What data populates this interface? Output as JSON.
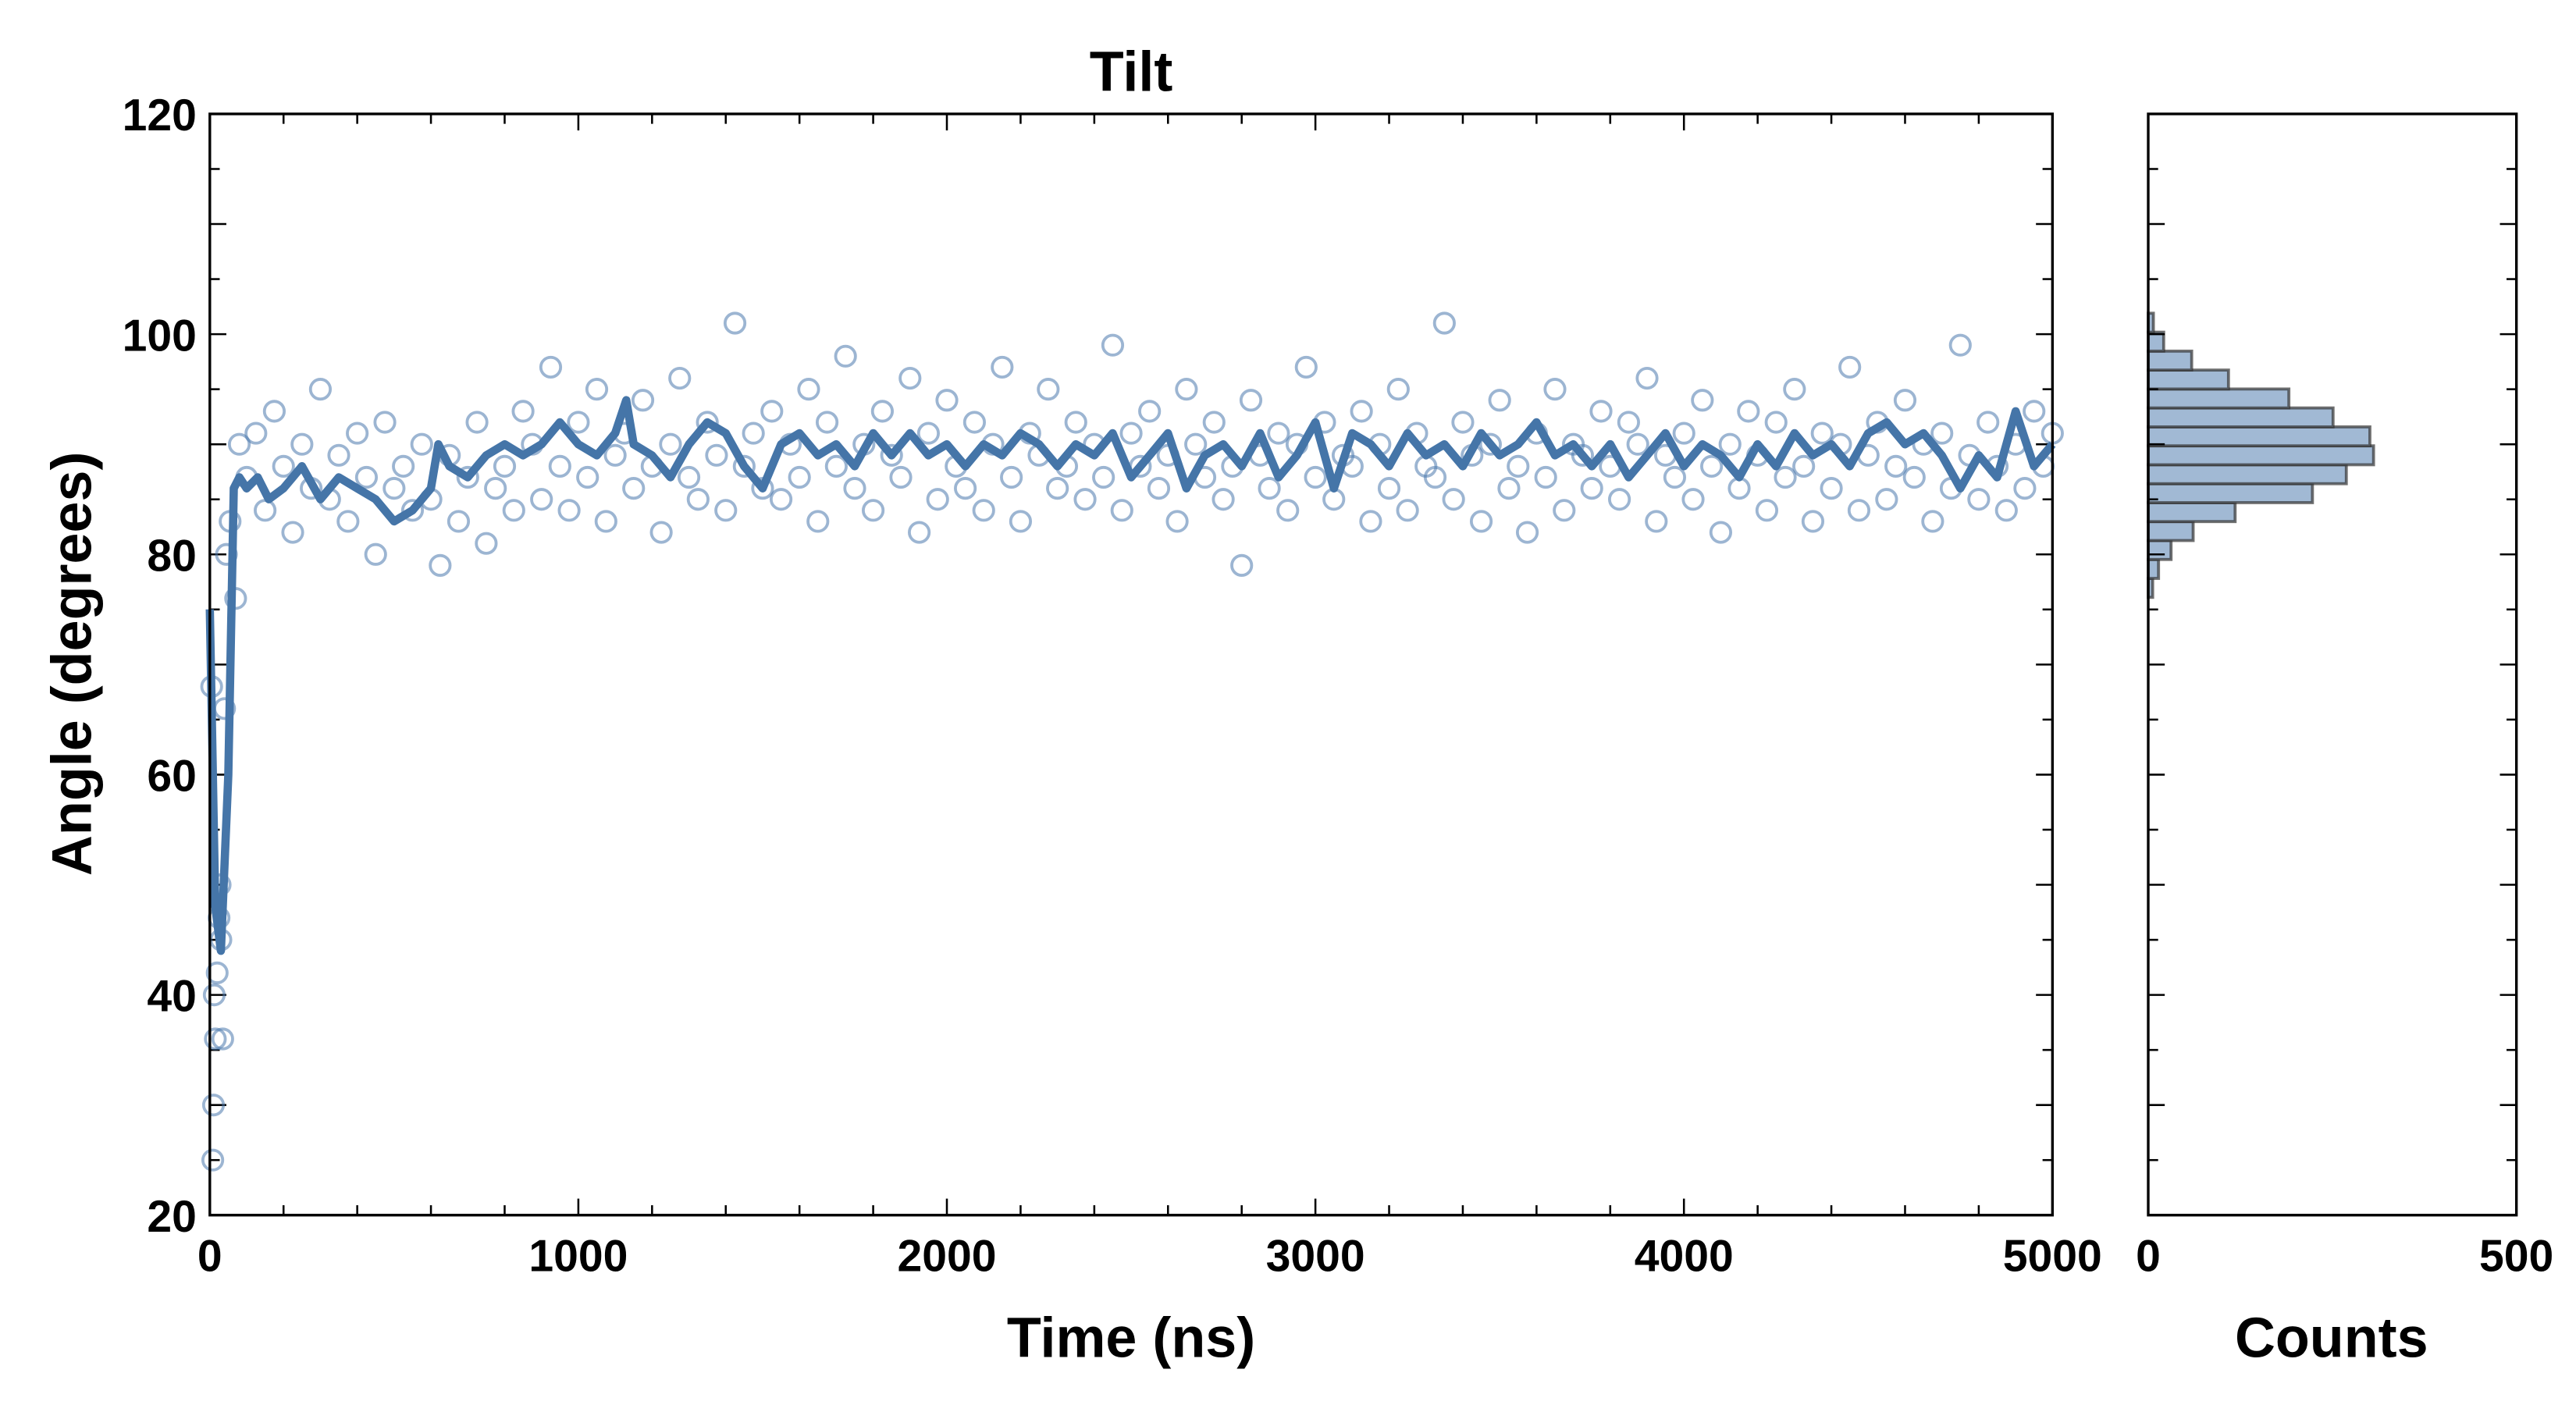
{
  "chart_data": [
    {
      "type": "scatter",
      "title": "Tilt",
      "xlabel": "Time (ns)",
      "ylabel": "Angle (degrees)",
      "xlim": [
        0,
        5000
      ],
      "ylim": [
        20,
        120
      ],
      "xticks": [
        "0",
        "1000",
        "2000",
        "3000",
        "4000",
        "5000"
      ],
      "yticks": [
        "20",
        "40",
        "60",
        "80",
        "100",
        "120"
      ],
      "grid": false,
      "colors": {
        "points": "#4a78ad",
        "line": "#4575a8"
      },
      "scatter_early": [
        [
          5,
          68
        ],
        [
          8,
          25
        ],
        [
          10,
          30
        ],
        [
          12,
          40
        ],
        [
          15,
          36
        ],
        [
          20,
          42
        ],
        [
          25,
          47
        ],
        [
          28,
          50
        ],
        [
          30,
          45
        ],
        [
          35,
          36
        ],
        [
          40,
          66
        ],
        [
          45,
          80
        ],
        [
          55,
          83
        ],
        [
          70,
          76
        ],
        [
          80,
          90
        ]
      ],
      "scatter_t0": 100,
      "scatter_dt": 25,
      "scatter_y": [
        87,
        91,
        84,
        93,
        88,
        82,
        90,
        86,
        95,
        85,
        89,
        83,
        91,
        87,
        80,
        92,
        86,
        88,
        84,
        90,
        85,
        79,
        89,
        83,
        87,
        92,
        81,
        86,
        88,
        84,
        93,
        90,
        85,
        97,
        88,
        84,
        92,
        87,
        95,
        83,
        89,
        91,
        86,
        94,
        88,
        82,
        90,
        96,
        87,
        85,
        92,
        89,
        84,
        101,
        88,
        91,
        86,
        93,
        85,
        90,
        87,
        95,
        83,
        92,
        88,
        98,
        86,
        90,
        84,
        93,
        89,
        87,
        96,
        82,
        91,
        85,
        94,
        88,
        86,
        92,
        84,
        90,
        97,
        87,
        83,
        91,
        89,
        95,
        86,
        88,
        92,
        85,
        90,
        87,
        99,
        84,
        91,
        88,
        93,
        86,
        89,
        83,
        95,
        90,
        87,
        92,
        85,
        88,
        79,
        94,
        89,
        86,
        91,
        84,
        90,
        97,
        87,
        92,
        85,
        89,
        88,
        93,
        83,
        90,
        86,
        95,
        84,
        91,
        88,
        87,
        101,
        85,
        92,
        89,
        83,
        90,
        94,
        86,
        88,
        82,
        91,
        87,
        95,
        84,
        90,
        89,
        86,
        93,
        88,
        85,
        92,
        90,
        96,
        83,
        89,
        87,
        91,
        85,
        94,
        88,
        82,
        90,
        86,
        93,
        89,
        84,
        92,
        87,
        95,
        88,
        83,
        91,
        86,
        90,
        97,
        84,
        89,
        92,
        85,
        88,
        94,
        87,
        90,
        83,
        91,
        86,
        99,
        89,
        85,
        92,
        88,
        84,
        90,
        86,
        93,
        88,
        91
      ],
      "running_mean": [
        [
          0,
          75
        ],
        [
          15,
          48
        ],
        [
          30,
          44
        ],
        [
          50,
          60
        ],
        [
          65,
          86
        ],
        [
          80,
          87
        ],
        [
          100,
          86
        ],
        [
          130,
          87
        ],
        [
          160,
          85
        ],
        [
          200,
          86
        ],
        [
          250,
          88
        ],
        [
          300,
          85
        ],
        [
          350,
          87
        ],
        [
          400,
          86
        ],
        [
          450,
          85
        ],
        [
          500,
          83
        ],
        [
          550,
          84
        ],
        [
          600,
          86
        ],
        [
          620,
          90
        ],
        [
          650,
          88
        ],
        [
          700,
          87
        ],
        [
          750,
          89
        ],
        [
          800,
          90
        ],
        [
          850,
          89
        ],
        [
          900,
          90
        ],
        [
          950,
          92
        ],
        [
          1000,
          90
        ],
        [
          1050,
          89
        ],
        [
          1100,
          91
        ],
        [
          1130,
          94
        ],
        [
          1150,
          90
        ],
        [
          1200,
          89
        ],
        [
          1250,
          87
        ],
        [
          1300,
          90
        ],
        [
          1350,
          92
        ],
        [
          1400,
          91
        ],
        [
          1450,
          88
        ],
        [
          1500,
          86
        ],
        [
          1550,
          90
        ],
        [
          1600,
          91
        ],
        [
          1650,
          89
        ],
        [
          1700,
          90
        ],
        [
          1750,
          88
        ],
        [
          1800,
          91
        ],
        [
          1850,
          89
        ],
        [
          1900,
          91
        ],
        [
          1950,
          89
        ],
        [
          2000,
          90
        ],
        [
          2050,
          88
        ],
        [
          2100,
          90
        ],
        [
          2150,
          89
        ],
        [
          2200,
          91
        ],
        [
          2250,
          90
        ],
        [
          2300,
          88
        ],
        [
          2350,
          90
        ],
        [
          2400,
          89
        ],
        [
          2450,
          91
        ],
        [
          2500,
          87
        ],
        [
          2550,
          89
        ],
        [
          2600,
          91
        ],
        [
          2650,
          86
        ],
        [
          2700,
          89
        ],
        [
          2750,
          90
        ],
        [
          2800,
          88
        ],
        [
          2850,
          91
        ],
        [
          2900,
          87
        ],
        [
          2950,
          89
        ],
        [
          3000,
          92
        ],
        [
          3050,
          86
        ],
        [
          3100,
          91
        ],
        [
          3150,
          90
        ],
        [
          3200,
          88
        ],
        [
          3250,
          91
        ],
        [
          3300,
          89
        ],
        [
          3350,
          90
        ],
        [
          3400,
          88
        ],
        [
          3450,
          91
        ],
        [
          3500,
          89
        ],
        [
          3550,
          90
        ],
        [
          3600,
          92
        ],
        [
          3650,
          89
        ],
        [
          3700,
          90
        ],
        [
          3750,
          88
        ],
        [
          3800,
          90
        ],
        [
          3850,
          87
        ],
        [
          3900,
          89
        ],
        [
          3950,
          91
        ],
        [
          4000,
          88
        ],
        [
          4050,
          90
        ],
        [
          4100,
          89
        ],
        [
          4150,
          87
        ],
        [
          4200,
          90
        ],
        [
          4250,
          88
        ],
        [
          4300,
          91
        ],
        [
          4350,
          89
        ],
        [
          4400,
          90
        ],
        [
          4450,
          88
        ],
        [
          4500,
          91
        ],
        [
          4550,
          92
        ],
        [
          4600,
          90
        ],
        [
          4650,
          91
        ],
        [
          4700,
          89
        ],
        [
          4750,
          86
        ],
        [
          4800,
          89
        ],
        [
          4850,
          87
        ],
        [
          4900,
          93
        ],
        [
          4950,
          88
        ],
        [
          5000,
          90
        ]
      ]
    },
    {
      "type": "bar",
      "orientation": "horizontal",
      "xlabel": "Counts",
      "xlim": [
        0,
        500
      ],
      "ylim": [
        20,
        120
      ],
      "xticks": [
        "0",
        "500"
      ],
      "colors": {
        "fill": "#a1b9d4",
        "edge": "#333333"
      },
      "bin_start": 76.1,
      "bin_width": 1.72,
      "counts": [
        6,
        14,
        31,
        61,
        118,
        223,
        269,
        306,
        301,
        251,
        191,
        109,
        59,
        21,
        7
      ]
    }
  ]
}
